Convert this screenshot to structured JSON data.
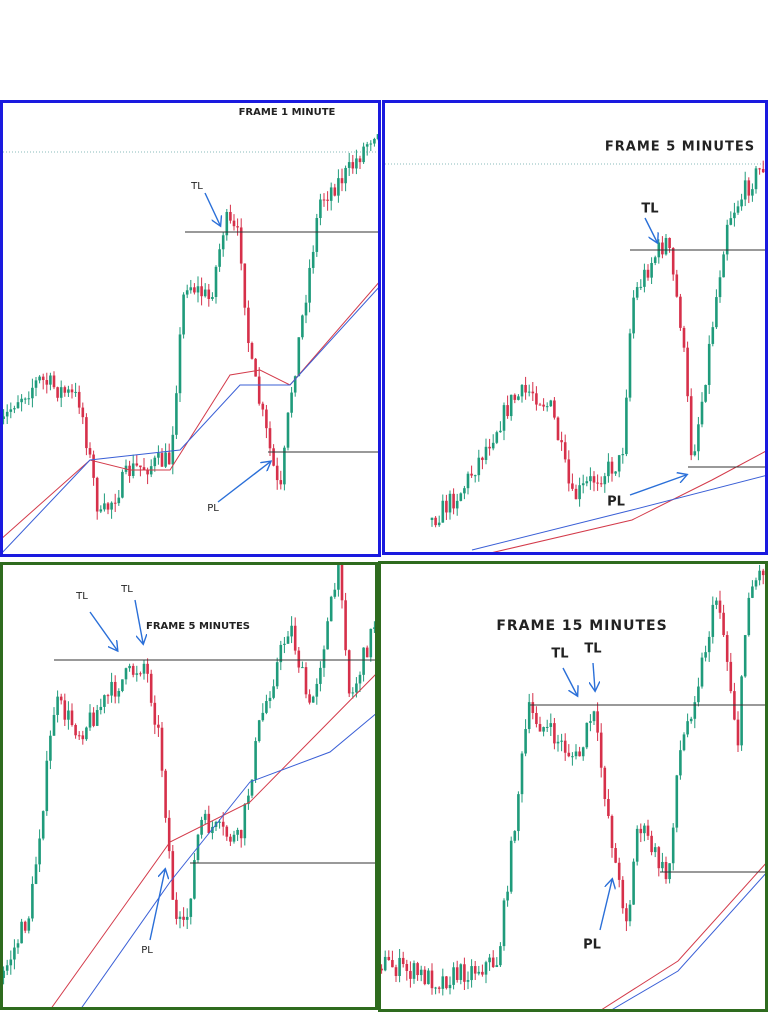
{
  "panels": [
    {
      "title": "FRAME 1 MINUTE",
      "labels": [
        "TL",
        "PL"
      ]
    },
    {
      "title": "FRAME 5 MINUTES",
      "labels": [
        "TL",
        "PL"
      ]
    },
    {
      "title": "FRAME 5 MINUTES",
      "labels": [
        "TL",
        "TL",
        "PL"
      ]
    },
    {
      "title": "FRAME 15 MINUTES",
      "labels": [
        "TL",
        "TL",
        "PL"
      ]
    }
  ]
}
